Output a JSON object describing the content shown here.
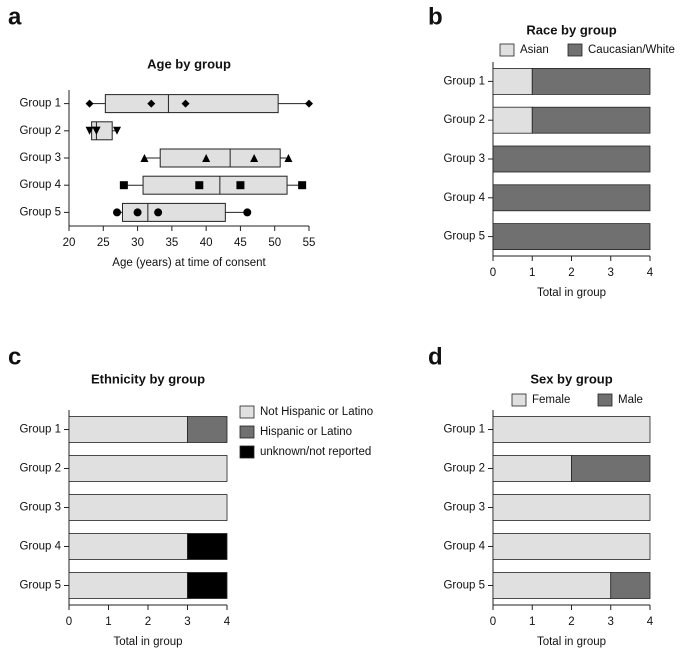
{
  "chart_data": [
    {
      "type": "box",
      "panel_label": "a",
      "title": "Age by group",
      "x_label": "Age (years) at time of consent",
      "xlim": [
        20,
        55
      ],
      "xticks": [
        20,
        25,
        30,
        35,
        40,
        45,
        50,
        55
      ],
      "box_color": "#e0e0e0",
      "groups": [
        {
          "name": "Group 1",
          "marker": "diamond",
          "min": 23,
          "q1": 25.3,
          "median": 34.5,
          "q3": 50.5,
          "max": 55,
          "points": [
            23,
            32,
            37,
            55
          ]
        },
        {
          "name": "Group 2",
          "marker": "triangle-down",
          "min": 23,
          "q1": 23.3,
          "median": 24,
          "q3": 26.3,
          "max": 27,
          "points": [
            23,
            24,
            24,
            27
          ]
        },
        {
          "name": "Group 3",
          "marker": "triangle-up",
          "min": 31,
          "q1": 33.3,
          "median": 43.5,
          "q3": 50.8,
          "max": 52,
          "points": [
            31,
            40,
            47,
            52
          ]
        },
        {
          "name": "Group 4",
          "marker": "square",
          "min": 28,
          "q1": 30.8,
          "median": 42,
          "q3": 51.8,
          "max": 54,
          "points": [
            28,
            39,
            45,
            54
          ]
        },
        {
          "name": "Group 5",
          "marker": "circle",
          "min": 27,
          "q1": 27.8,
          "median": 31.5,
          "q3": 42.8,
          "max": 46,
          "points": [
            27,
            30,
            33,
            46
          ]
        }
      ]
    },
    {
      "type": "stacked-bar",
      "panel_label": "b",
      "title": "Race by group",
      "x_label": "Total in group",
      "legend": "top",
      "categories": [
        "Group 1",
        "Group 2",
        "Group 3",
        "Group 4",
        "Group 5"
      ],
      "xlim": [
        0,
        4
      ],
      "xticks": [
        0,
        1,
        2,
        3,
        4
      ],
      "series": [
        {
          "name": "Asian",
          "color": "#e0e0e0",
          "values": [
            1,
            1,
            0,
            0,
            0
          ]
        },
        {
          "name": "Caucasian/White",
          "color": "#707070",
          "values": [
            3,
            3,
            4,
            4,
            4
          ]
        }
      ]
    },
    {
      "type": "stacked-bar",
      "panel_label": "c",
      "title": "Ethnicity by group",
      "x_label": "Total in group",
      "legend": "right",
      "categories": [
        "Group 1",
        "Group 2",
        "Group 3",
        "Group 4",
        "Group 5"
      ],
      "xlim": [
        0,
        4
      ],
      "xticks": [
        0,
        1,
        2,
        3,
        4
      ],
      "series": [
        {
          "name": "Not Hispanic or Latino",
          "color": "#e0e0e0",
          "values": [
            3,
            4,
            4,
            3,
            3
          ]
        },
        {
          "name": "Hispanic or Latino",
          "color": "#707070",
          "values": [
            1,
            0,
            0,
            0,
            0
          ]
        },
        {
          "name": "unknown/not reported",
          "color": "#000000",
          "values": [
            0,
            0,
            0,
            1,
            1
          ]
        }
      ]
    },
    {
      "type": "stacked-bar",
      "panel_label": "d",
      "title": "Sex by group",
      "x_label": "Total in group",
      "legend": "top",
      "categories": [
        "Group 1",
        "Group 2",
        "Group 3",
        "Group 4",
        "Group 5"
      ],
      "xlim": [
        0,
        4
      ],
      "xticks": [
        0,
        1,
        2,
        3,
        4
      ],
      "series": [
        {
          "name": "Female",
          "color": "#e0e0e0",
          "values": [
            4,
            2,
            4,
            4,
            3
          ]
        },
        {
          "name": "Male",
          "color": "#707070",
          "values": [
            0,
            2,
            0,
            0,
            1
          ]
        }
      ]
    }
  ]
}
